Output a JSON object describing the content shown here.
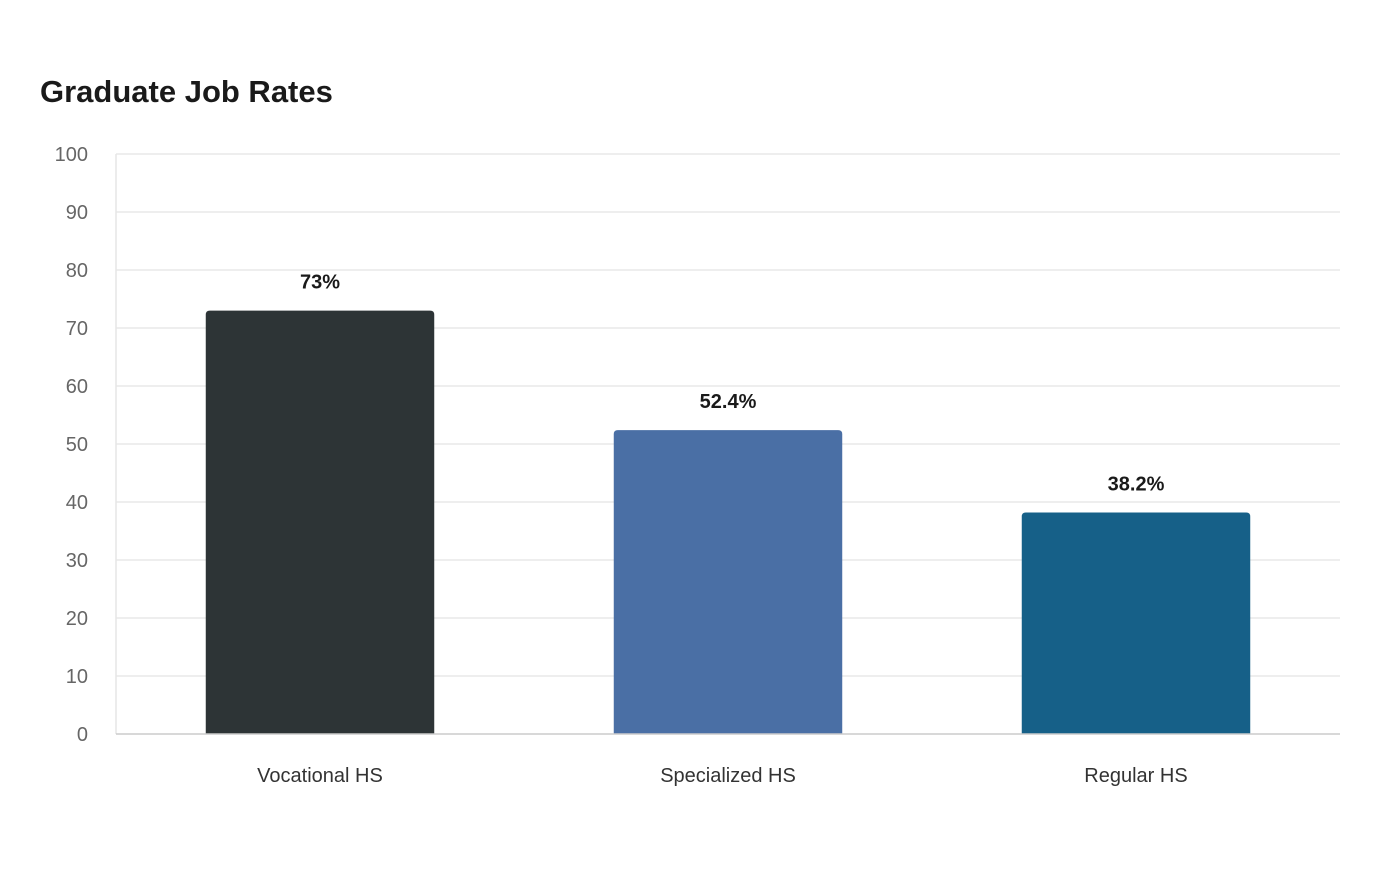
{
  "chart_data": {
    "type": "bar",
    "title": "Graduate Job Rates",
    "xlabel": "",
    "ylabel": "",
    "categories": [
      "Vocational HS",
      "Specialized HS",
      "Regular HS"
    ],
    "values": [
      73,
      52.4,
      38.2
    ],
    "data_labels": [
      "73%",
      "52.4%",
      "38.2%"
    ],
    "colors": [
      "#2d3436",
      "#4a6fa5",
      "#166088"
    ],
    "ylim": [
      0,
      100
    ],
    "yticks": [
      0,
      10,
      20,
      30,
      40,
      50,
      60,
      70,
      80,
      90,
      100
    ],
    "grid": true,
    "legend": "none"
  }
}
